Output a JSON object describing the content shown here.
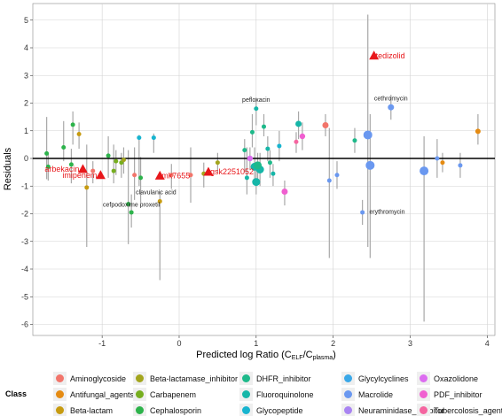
{
  "chart_data": {
    "type": "scatter",
    "xlabel": {
      "main": "Predicted log Ratio (C",
      "sub1": "ELF",
      "mid": "/C",
      "sub2": "plasma",
      "end": ")"
    },
    "ylabel": "Residuals",
    "xlim": [
      -1.9,
      4.1
    ],
    "ylim": [
      -6.4,
      5.6
    ],
    "x_ticks": [
      -1,
      0,
      1,
      2,
      3,
      4
    ],
    "y_ticks": [
      5,
      4,
      3,
      2,
      1,
      0,
      -1,
      -2,
      -3,
      -4,
      -5,
      -6
    ],
    "grid": true,
    "zero_line": 0,
    "legend": {
      "title": "Class",
      "placement": "bottom",
      "entries": [
        {
          "name": "Aminoglycoside",
          "color": "#f2756b"
        },
        {
          "name": "Antifungal_agents",
          "color": "#e58b12"
        },
        {
          "name": "Beta-lactam",
          "color": "#c79b10"
        },
        {
          "name": "Beta-lactamase_inhibitor",
          "color": "#a3a51d"
        },
        {
          "name": "Carbapenem",
          "color": "#76ae1f"
        },
        {
          "name": "Cephalosporin",
          "color": "#2db34b"
        },
        {
          "name": "DHFR_inhibitor",
          "color": "#1eb98a"
        },
        {
          "name": "Fluoroquinolone",
          "color": "#16b6a8"
        },
        {
          "name": "Glycopeptide",
          "color": "#17b4cf"
        },
        {
          "name": "Glycylcyclines",
          "color": "#3aa8e8"
        },
        {
          "name": "Macrolide",
          "color": "#6a98f0"
        },
        {
          "name": "Neuraminidase_inhibitor",
          "color": "#a984f2"
        },
        {
          "name": "Oxazolidone",
          "color": "#dc6cf0"
        },
        {
          "name": "PDF_inhibitor",
          "color": "#f05fd0"
        },
        {
          "name": "Tubercolosis_agents",
          "color": "#f565a0"
        }
      ]
    },
    "points": [
      {
        "x": -1.72,
        "y": 0.18,
        "lo": -0.75,
        "hi": 1.5,
        "size": 2.5,
        "color": "#2db34b"
      },
      {
        "x": -1.7,
        "y": -0.3,
        "lo": -0.8,
        "hi": 0.2,
        "size": 2.5,
        "color": "#2db34b"
      },
      {
        "x": -1.5,
        "y": 0.4,
        "lo": -0.1,
        "hi": 1.35,
        "size": 2.5,
        "color": "#2db34b"
      },
      {
        "x": -1.38,
        "y": 1.22,
        "lo": 0.5,
        "hi": 1.7,
        "size": 2.5,
        "color": "#2db34b"
      },
      {
        "x": -1.3,
        "y": 0.88,
        "lo": 0.35,
        "hi": 1.3,
        "size": 2.5,
        "color": "#c79b10"
      },
      {
        "x": -1.4,
        "y": -0.22,
        "lo": -0.9,
        "hi": 0.35,
        "size": 2.5,
        "color": "#2db34b"
      },
      {
        "x": -1.2,
        "y": -1.05,
        "lo": -3.2,
        "hi": 0.5,
        "size": 2.5,
        "color": "#c79b10"
      },
      {
        "x": -1.12,
        "y": -0.45,
        "lo": -0.9,
        "hi": -0.1,
        "size": 2.5,
        "color": "#f2756b"
      },
      {
        "x": -0.92,
        "y": 0.1,
        "lo": -0.7,
        "hi": 0.8,
        "size": 2.5,
        "color": "#2db34b"
      },
      {
        "x": -0.85,
        "y": -0.45,
        "lo": -0.9,
        "hi": 0.5,
        "size": 2.5,
        "color": "#76ae1f"
      },
      {
        "x": -0.82,
        "y": -0.1,
        "lo": -0.6,
        "hi": 0.3,
        "size": 2.5,
        "color": "#76ae1f"
      },
      {
        "x": -0.75,
        "y": -0.15,
        "lo": -0.7,
        "hi": 0.2,
        "size": 2.5,
        "color": "#76ae1f"
      },
      {
        "x": -0.72,
        "y": -0.05,
        "lo": -0.55,
        "hi": 0.4,
        "size": 2.5,
        "color": "#a3a51d"
      },
      {
        "x": -0.66,
        "y": -1.65,
        "lo": -3.1,
        "hi": 0.3,
        "size": 2.5,
        "color": "#2db34b"
      },
      {
        "x": -0.62,
        "y": -1.95,
        "lo": -2.5,
        "hi": -1.3,
        "size": 2.5,
        "color": "#2db34b"
      },
      {
        "x": -0.58,
        "y": -0.6,
        "lo": -1.5,
        "hi": 0.4,
        "size": 2.5,
        "color": "#f2756b"
      },
      {
        "x": -0.5,
        "y": -0.7,
        "lo": -1.6,
        "hi": 0.05,
        "size": 2.5,
        "color": "#2db34b"
      },
      {
        "x": -0.52,
        "y": 0.75,
        "lo": -1.0,
        "hi": 0.85,
        "size": 2.5,
        "color": "#17b4cf"
      },
      {
        "x": -0.33,
        "y": 0.75,
        "lo": 0.2,
        "hi": 0.9,
        "size": 2.5,
        "color": "#17b4cf"
      },
      {
        "x": -0.25,
        "y": -1.55,
        "lo": -4.4,
        "hi": -1.2,
        "size": 2.5,
        "color": "#c79b10"
      },
      {
        "x": -0.1,
        "y": -0.6,
        "lo": -1.1,
        "hi": -0.2,
        "size": 2.5,
        "color": "#f2756b"
      },
      {
        "x": 0.5,
        "y": -0.15,
        "lo": -0.5,
        "hi": 0.2,
        "size": 2.5,
        "color": "#a3a51d"
      },
      {
        "x": 0.32,
        "y": -0.55,
        "lo": -1.05,
        "hi": -0.15,
        "size": 2.5,
        "color": "#a3a51d"
      },
      {
        "x": 0.15,
        "y": -0.6,
        "lo": -1.6,
        "hi": 0.4,
        "size": 2.5,
        "color": "#f2756b"
      },
      {
        "x": 0.92,
        "y": 0.0,
        "lo": -0.4,
        "hi": 0.4,
        "size": 3.2,
        "color": "#dc6cf0"
      },
      {
        "x": 0.88,
        "y": -0.7,
        "lo": -1.3,
        "hi": 0.4,
        "size": 2.5,
        "color": "#16b6a8"
      },
      {
        "x": 0.85,
        "y": 0.3,
        "lo": -0.5,
        "hi": 0.7,
        "size": 2.5,
        "color": "#1eb98a"
      },
      {
        "x": 0.95,
        "y": 0.95,
        "lo": 0.4,
        "hi": 1.6,
        "size": 2.5,
        "color": "#1eb98a"
      },
      {
        "x": 1.0,
        "y": 1.8,
        "lo": 1.2,
        "hi": 2.2,
        "size": 2.5,
        "color": "#16b6a8"
      },
      {
        "x": 1.0,
        "y": -0.85,
        "lo": -1.3,
        "hi": -0.4,
        "size": 4.5,
        "color": "#16b6a8"
      },
      {
        "x": 0.98,
        "y": -0.3,
        "lo": -0.8,
        "hi": 0.4,
        "size": 4.5,
        "color": "#16b6a8"
      },
      {
        "x": 1.05,
        "y": -0.4,
        "lo": -1.0,
        "hi": 0.2,
        "size": 4.5,
        "color": "#16b6a8"
      },
      {
        "x": 1.02,
        "y": -0.25,
        "lo": -0.8,
        "hi": 0.2,
        "size": 4.5,
        "color": "#1eb98a"
      },
      {
        "x": 1.1,
        "y": 1.15,
        "lo": 0.8,
        "hi": 1.6,
        "size": 2.5,
        "color": "#1eb98a"
      },
      {
        "x": 1.15,
        "y": 0.35,
        "lo": -0.1,
        "hi": 0.8,
        "size": 2.5,
        "color": "#16b6a8"
      },
      {
        "x": 1.18,
        "y": -0.15,
        "lo": -0.7,
        "hi": 0.3,
        "size": 2.5,
        "color": "#1eb98a"
      },
      {
        "x": 1.22,
        "y": -0.55,
        "lo": -1.0,
        "hi": -0.2,
        "size": 2.5,
        "color": "#16b6a8"
      },
      {
        "x": 1.3,
        "y": 0.45,
        "lo": -0.1,
        "hi": 1.0,
        "size": 2.5,
        "color": "#17b4cf"
      },
      {
        "x": 1.37,
        "y": -1.2,
        "lo": -1.7,
        "hi": -0.8,
        "size": 3.5,
        "color": "#f05fd0"
      },
      {
        "x": 1.55,
        "y": 1.25,
        "lo": 0.7,
        "hi": 1.7,
        "size": 3.5,
        "color": "#16b6a8"
      },
      {
        "x": 1.6,
        "y": 0.8,
        "lo": 0.3,
        "hi": 1.3,
        "size": 3.2,
        "color": "#f05fd0"
      },
      {
        "x": 1.52,
        "y": 0.6,
        "lo": 0.2,
        "hi": 0.95,
        "size": 2.5,
        "color": "#f565a0"
      },
      {
        "x": 1.9,
        "y": 1.2,
        "lo": 0.8,
        "hi": 1.6,
        "size": 3.5,
        "color": "#f2756b"
      },
      {
        "x": 1.95,
        "y": -0.8,
        "lo": -3.6,
        "hi": 1.1,
        "size": 2.5,
        "color": "#6a98f0"
      },
      {
        "x": 2.05,
        "y": -0.6,
        "lo": -1.1,
        "hi": -0.1,
        "size": 2.5,
        "color": "#6a98f0"
      },
      {
        "x": 2.28,
        "y": 0.65,
        "lo": 0.2,
        "hi": 1.1,
        "size": 2.5,
        "color": "#1eb98a"
      },
      {
        "x": 2.38,
        "y": -1.95,
        "lo": -2.4,
        "hi": -1.5,
        "size": 2.5,
        "color": "#6a98f0"
      },
      {
        "x": 2.45,
        "y": 0.85,
        "lo": -3.2,
        "hi": 5.2,
        "size": 5.0,
        "color": "#6a98f0"
      },
      {
        "x": 2.48,
        "y": -0.25,
        "lo": -3.6,
        "hi": 1.6,
        "size": 5.0,
        "color": "#6a98f0"
      },
      {
        "x": 2.75,
        "y": 1.85,
        "lo": 1.4,
        "hi": 2.3,
        "size": 3.5,
        "color": "#6a98f0"
      },
      {
        "x": 3.18,
        "y": -0.45,
        "lo": -5.9,
        "hi": 0.8,
        "size": 5.0,
        "color": "#6a98f0"
      },
      {
        "x": 3.35,
        "y": 0.0,
        "lo": -0.7,
        "hi": 0.7,
        "size": 2.5,
        "color": "#6a98f0"
      },
      {
        "x": 3.42,
        "y": -0.15,
        "lo": -0.5,
        "hi": 0.2,
        "size": 2.5,
        "color": "#e58b12"
      },
      {
        "x": 3.65,
        "y": -0.25,
        "lo": -0.7,
        "hi": 0.2,
        "size": 2.5,
        "color": "#6a98f0"
      },
      {
        "x": 3.88,
        "y": 0.98,
        "lo": 0.5,
        "hi": 1.6,
        "size": 3.0,
        "color": "#e58b12"
      }
    ],
    "highlights": [
      {
        "x": 2.53,
        "y": 3.72,
        "label": "tedizolid"
      },
      {
        "x": -1.25,
        "y": -0.38,
        "label": "arbekacin"
      },
      {
        "x": -1.02,
        "y": -0.6,
        "label": "imipenem"
      },
      {
        "x": -0.25,
        "y": -0.62,
        "label": "mk7655"
      },
      {
        "x": 0.38,
        "y": -0.48,
        "label": "gsk2251052"
      }
    ],
    "annotations": [
      {
        "x": 1.0,
        "y": 2.05,
        "text": "pefloxacin"
      },
      {
        "x": 2.75,
        "y": 2.1,
        "text": "cethromycin"
      },
      {
        "x": -0.3,
        "y": -1.3,
        "text": "clavulanic acid"
      },
      {
        "x": -0.62,
        "y": -1.75,
        "text": "cefpodoxime proxetil"
      },
      {
        "x": 2.7,
        "y": -2.0,
        "text": "erythromycin"
      }
    ]
  }
}
